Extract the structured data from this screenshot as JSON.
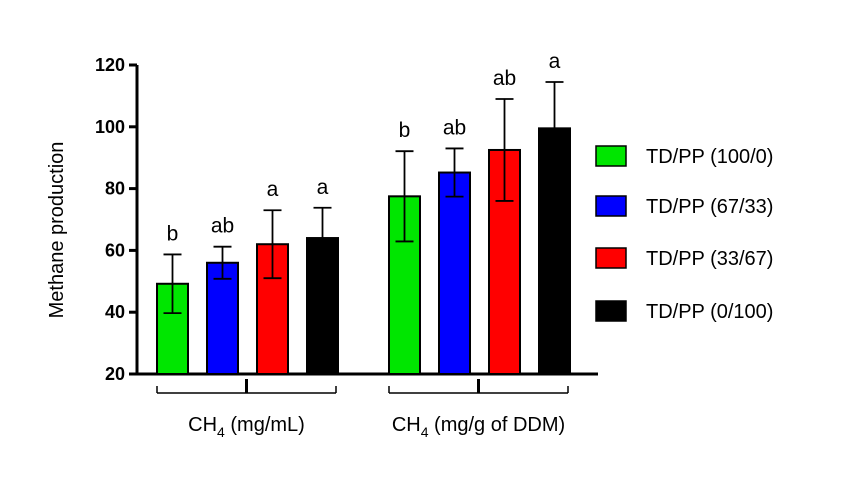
{
  "chart_data": {
    "type": "bar",
    "ylabel": "Methane production",
    "ylim": [
      20,
      120
    ],
    "yticks": [
      "20",
      "40",
      "60",
      "80",
      "100",
      "120"
    ],
    "grid": false,
    "legend_position": "right",
    "groups": [
      {
        "label_main": "CH",
        "label_sub": "4",
        "label_rest": " (mg/mL)"
      },
      {
        "label_main": "CH",
        "label_sub": "4",
        "label_rest": " (mg/g of DDM)"
      }
    ],
    "series": [
      {
        "name": "TD/PP (100/0)",
        "color": "#00e600",
        "values": [
          49.2,
          77.5
        ],
        "errors": [
          9.5,
          14.6
        ],
        "labels": [
          "b",
          "b"
        ]
      },
      {
        "name": "TD/PP (67/33)",
        "color": "#0000ff",
        "values": [
          56.0,
          85.2
        ],
        "errors": [
          5.2,
          7.8
        ],
        "labels": [
          "ab",
          "ab"
        ]
      },
      {
        "name": "TD/PP (33/67)",
        "color": "#ff0000",
        "values": [
          62.0,
          92.5
        ],
        "errors": [
          11.0,
          16.5
        ],
        "labels": [
          "a",
          "ab"
        ]
      },
      {
        "name": "TD/PP (0/100)",
        "color": "#000000",
        "values": [
          64.0,
          99.5
        ],
        "errors": [
          9.8,
          15.0
        ],
        "labels": [
          "a",
          "a"
        ]
      }
    ]
  }
}
